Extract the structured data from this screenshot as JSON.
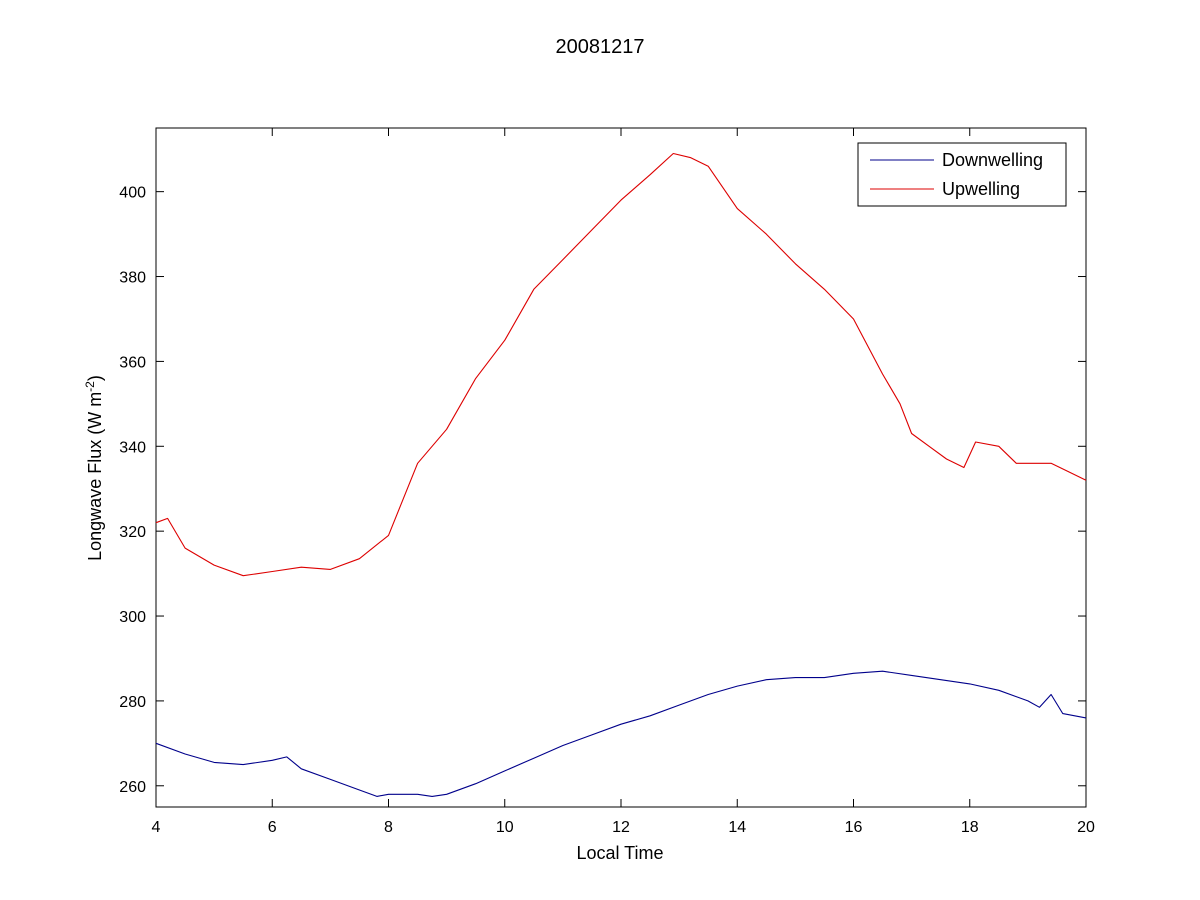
{
  "chart_data": {
    "type": "line",
    "title": "20081217",
    "xlabel": "Local Time",
    "ylabel_main": "Longwave Flux (W m",
    "ylabel_sup": "-2",
    "ylabel_close": ")",
    "xlim": [
      4,
      20
    ],
    "ylim": [
      255,
      415
    ],
    "xticks": [
      4,
      6,
      8,
      10,
      12,
      14,
      16,
      18,
      20
    ],
    "yticks": [
      260,
      280,
      300,
      320,
      340,
      360,
      380,
      400
    ],
    "grid": false,
    "legend_position": "top-right",
    "series": [
      {
        "name": "Downwelling",
        "color": "#00008b",
        "x": [
          4.0,
          4.5,
          5.0,
          5.5,
          6.0,
          6.25,
          6.5,
          7.0,
          7.5,
          7.8,
          8.0,
          8.5,
          8.75,
          9.0,
          9.5,
          10.0,
          10.5,
          11.0,
          11.5,
          12.0,
          12.5,
          13.0,
          13.5,
          14.0,
          14.5,
          15.0,
          15.5,
          16.0,
          16.5,
          17.0,
          17.5,
          18.0,
          18.5,
          19.0,
          19.2,
          19.4,
          19.6,
          20.0
        ],
        "y": [
          270,
          267.5,
          265.5,
          265,
          266,
          266.8,
          264,
          261.5,
          259,
          257.5,
          258,
          258,
          257.5,
          258,
          260.5,
          263.5,
          266.5,
          269.5,
          272,
          274.5,
          276.5,
          279,
          281.5,
          283.5,
          285,
          285.5,
          285.5,
          286.5,
          287,
          286,
          285,
          284,
          282.5,
          280,
          278.5,
          281.5,
          277,
          276
        ]
      },
      {
        "name": "Upwelling",
        "color": "#dd0000",
        "x": [
          4.0,
          4.2,
          4.5,
          5.0,
          5.5,
          6.0,
          6.5,
          7.0,
          7.5,
          8.0,
          8.5,
          9.0,
          9.5,
          10.0,
          10.5,
          11.0,
          11.5,
          12.0,
          12.5,
          12.9,
          13.2,
          13.5,
          14.0,
          14.5,
          15.0,
          15.5,
          16.0,
          16.5,
          16.8,
          17.0,
          17.3,
          17.6,
          17.9,
          18.1,
          18.5,
          18.8,
          19.0,
          19.4,
          19.7,
          20.0
        ],
        "y": [
          322,
          323,
          316,
          312,
          309.5,
          310.5,
          311.5,
          311,
          313.5,
          319,
          336,
          344,
          356,
          365,
          377,
          384,
          391,
          398,
          404,
          409,
          408,
          406,
          396,
          390,
          383,
          377,
          370,
          357,
          350,
          343,
          340,
          337,
          335,
          341,
          340,
          336,
          336,
          336,
          334,
          332
        ]
      }
    ]
  }
}
